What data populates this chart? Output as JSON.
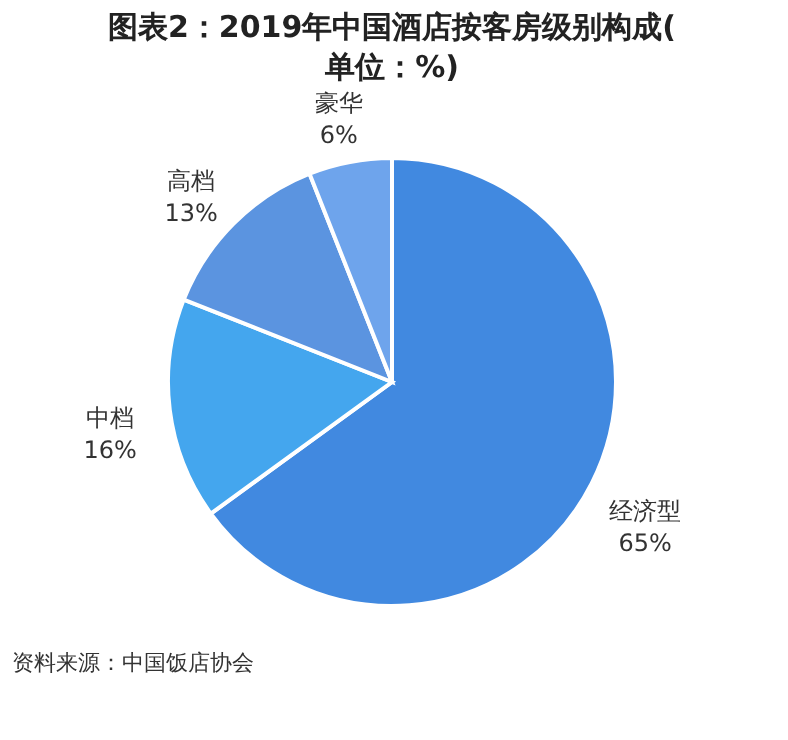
{
  "chart_data": {
    "type": "pie",
    "title": "图表2：2019年中国酒店按客房级别构成(单位：%)",
    "categories": [
      "经济型",
      "中档",
      "高档",
      "豪华"
    ],
    "values": [
      65,
      16,
      13,
      6
    ],
    "value_labels": [
      "65%",
      "16%",
      "13%",
      "6%"
    ],
    "colors": [
      "#4189e0",
      "#44a6ee",
      "#5b94e0",
      "#6ea4ec"
    ],
    "legend": false,
    "annotations": [
      "资料来源：中国饭店协会"
    ]
  }
}
